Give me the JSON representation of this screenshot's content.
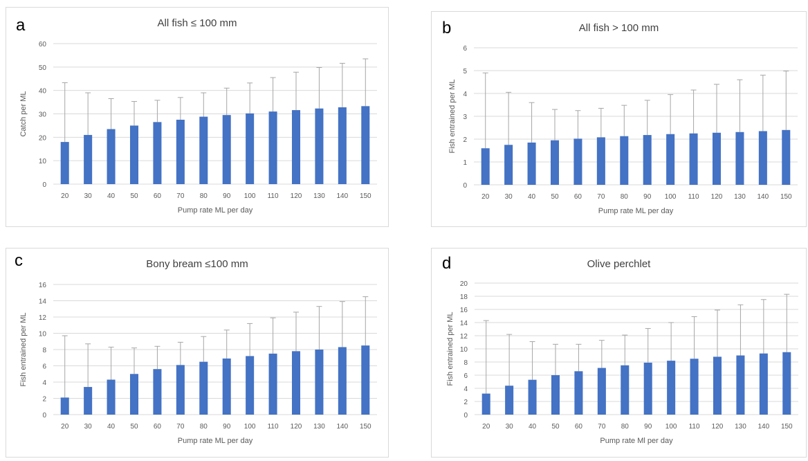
{
  "figure": {
    "colors": {
      "bar": "#4472C4",
      "errorbar": "#a6a6a6",
      "grid": "#d9d9d9",
      "text": "#595959",
      "border": "#d9d9d9"
    }
  },
  "chart_data": [
    {
      "panel": "a",
      "type": "bar",
      "title": "All fish ≤ 100 mm",
      "xlabel": "Pump rate ML per day",
      "ylabel": "Catch per ML",
      "categories": [
        "20",
        "30",
        "40",
        "50",
        "60",
        "70",
        "80",
        "90",
        "100",
        "110",
        "120",
        "130",
        "140",
        "150"
      ],
      "values": [
        18,
        21,
        23.5,
        25,
        26.5,
        27.5,
        28.8,
        29.5,
        30.2,
        31,
        31.6,
        32.3,
        32.8,
        33.3
      ],
      "error_upper": [
        43.3,
        39,
        36.5,
        35.3,
        35.8,
        37,
        39,
        41,
        43.2,
        45.5,
        47.8,
        49.8,
        51.6,
        53.5
      ],
      "ylim": [
        0,
        60
      ],
      "yticks": [
        0,
        10,
        20,
        30,
        40,
        50,
        60
      ],
      "grid": true
    },
    {
      "panel": "b",
      "type": "bar",
      "title": "All fish > 100 mm",
      "xlabel": "Pump rate ML per day",
      "ylabel": "Fish entrained per ML",
      "categories": [
        "20",
        "30",
        "40",
        "50",
        "60",
        "70",
        "80",
        "90",
        "100",
        "110",
        "120",
        "130",
        "140",
        "150"
      ],
      "values": [
        1.6,
        1.75,
        1.85,
        1.95,
        2.02,
        2.08,
        2.13,
        2.18,
        2.22,
        2.25,
        2.28,
        2.31,
        2.35,
        2.4
      ],
      "error_upper": [
        4.9,
        4.05,
        3.6,
        3.3,
        3.25,
        3.35,
        3.48,
        3.7,
        3.95,
        4.15,
        4.4,
        4.6,
        4.8,
        4.98
      ],
      "ylim": [
        0,
        6
      ],
      "yticks": [
        0,
        1,
        2,
        3,
        4,
        5,
        6
      ],
      "grid": true
    },
    {
      "panel": "c",
      "type": "bar",
      "title": "Bony bream ≤100 mm",
      "xlabel": "Pump rate ML per day",
      "ylabel": "Fish entrained per ML",
      "categories": [
        "20",
        "30",
        "40",
        "50",
        "60",
        "70",
        "80",
        "90",
        "100",
        "110",
        "120",
        "130",
        "140",
        "150"
      ],
      "values": [
        2.1,
        3.4,
        4.3,
        5.0,
        5.6,
        6.1,
        6.5,
        6.9,
        7.2,
        7.5,
        7.8,
        8.0,
        8.3,
        8.5
      ],
      "error_upper": [
        9.7,
        8.7,
        8.3,
        8.2,
        8.4,
        8.9,
        9.6,
        10.4,
        11.2,
        11.9,
        12.6,
        13.3,
        13.9,
        14.5
      ],
      "ylim": [
        0,
        16
      ],
      "yticks": [
        0,
        2,
        4,
        6,
        8,
        10,
        12,
        14,
        16
      ],
      "grid": true
    },
    {
      "panel": "d",
      "type": "bar",
      "title": "Olive perchlet",
      "xlabel": "Pump rate Ml per day",
      "ylabel": "Fish entrained per ML",
      "categories": [
        "20",
        "30",
        "40",
        "50",
        "60",
        "70",
        "80",
        "90",
        "100",
        "110",
        "120",
        "130",
        "140",
        "150"
      ],
      "values": [
        3.2,
        4.4,
        5.3,
        6.0,
        6.6,
        7.1,
        7.5,
        7.9,
        8.2,
        8.5,
        8.8,
        9.0,
        9.3,
        9.5
      ],
      "error_upper": [
        14.3,
        12.2,
        11.1,
        10.7,
        10.7,
        11.3,
        12.1,
        13.1,
        14.0,
        14.9,
        15.9,
        16.7,
        17.5,
        18.3
      ],
      "ylim": [
        0,
        20
      ],
      "yticks": [
        0,
        2,
        4,
        6,
        8,
        10,
        12,
        14,
        16,
        18,
        20
      ],
      "grid": true
    }
  ]
}
